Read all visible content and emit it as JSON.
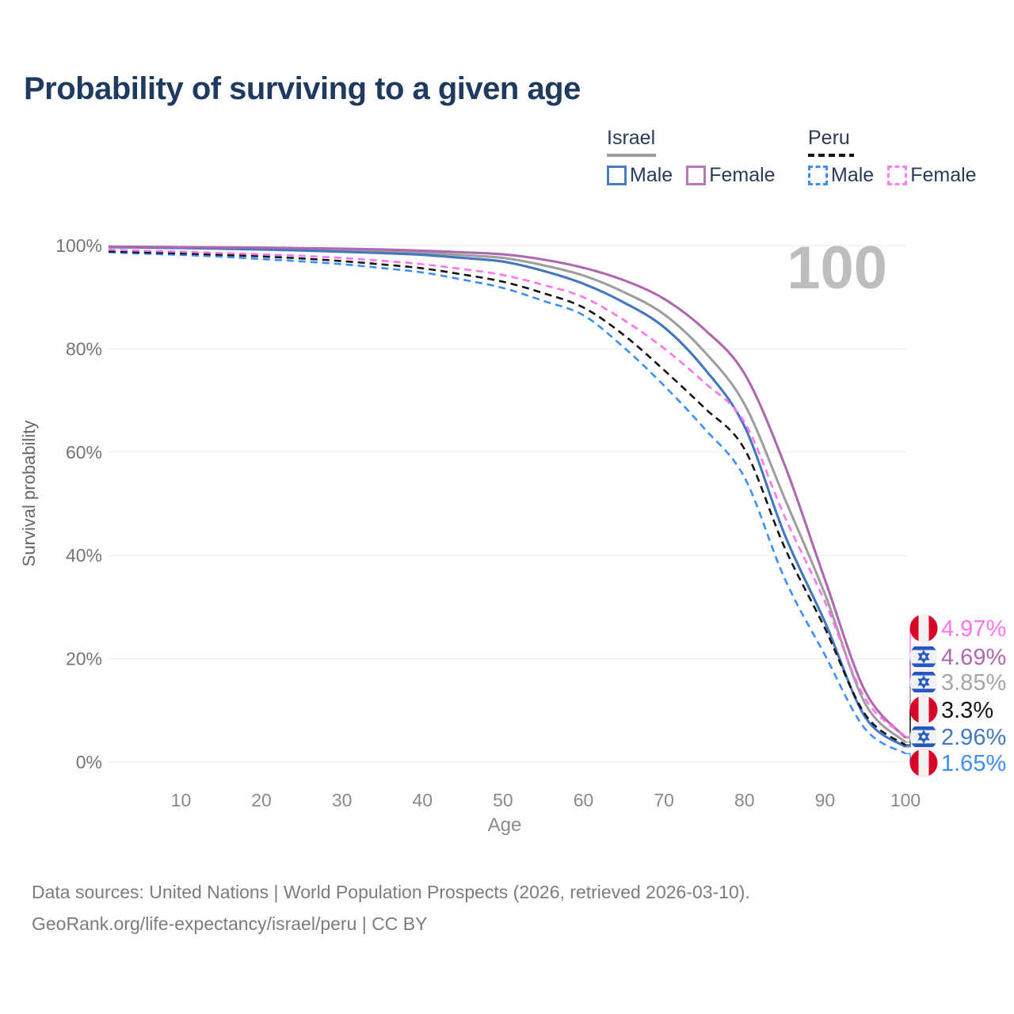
{
  "title": "Probability of surviving to a given age",
  "watermark_age": "100",
  "legend": {
    "groups": [
      {
        "label": "Israel",
        "style": "solid",
        "items": [
          {
            "label": "Male"
          },
          {
            "label": "Female"
          }
        ]
      },
      {
        "label": "Peru",
        "style": "dashed",
        "items": [
          {
            "label": "Male"
          },
          {
            "label": "Female"
          }
        ]
      }
    ]
  },
  "chart_data": {
    "type": "line",
    "title": "Probability of surviving to a given age",
    "xlabel": "Age",
    "ylabel": "Survival probability",
    "xlim": [
      1,
      100
    ],
    "ylim": [
      0,
      100
    ],
    "grid": "horizontal",
    "x_ticks": [
      {
        "value": 10,
        "label": "10"
      },
      {
        "value": 20,
        "label": "20"
      },
      {
        "value": 30,
        "label": "30"
      },
      {
        "value": 40,
        "label": "40"
      },
      {
        "value": 50,
        "label": "50"
      },
      {
        "value": 60,
        "label": "60"
      },
      {
        "value": 70,
        "label": "70"
      },
      {
        "value": 80,
        "label": "80"
      },
      {
        "value": 90,
        "label": "90"
      },
      {
        "value": 100,
        "label": "100"
      }
    ],
    "y_ticks": [
      {
        "value": 0,
        "label": "0%"
      },
      {
        "value": 20,
        "label": "20%"
      },
      {
        "value": 40,
        "label": "40%"
      },
      {
        "value": 60,
        "label": "60%"
      },
      {
        "value": 80,
        "label": "80%"
      },
      {
        "value": 100,
        "label": "100%"
      }
    ],
    "x": [
      1,
      5,
      10,
      15,
      20,
      25,
      30,
      35,
      40,
      45,
      50,
      55,
      60,
      65,
      70,
      75,
      80,
      85,
      90,
      95,
      100
    ],
    "series": [
      {
        "id": "israel-total",
        "name": "Israel",
        "sex": "total",
        "dash": false,
        "color": "#9e9e9e",
        "values": [
          99.7,
          99.66,
          99.6,
          99.52,
          99.42,
          99.28,
          99.1,
          98.88,
          98.6,
          98.15,
          97.6,
          96.2,
          94.2,
          91.0,
          86.7,
          79.5,
          69.3,
          51.0,
          32.5,
          11.3,
          3.85
        ]
      },
      {
        "id": "israel-male",
        "name": "Israel Male",
        "sex": "male",
        "dash": false,
        "color": "#4377be",
        "values": [
          99.7,
          99.62,
          99.52,
          99.4,
          99.25,
          99.05,
          98.8,
          98.55,
          98.2,
          97.6,
          96.9,
          95.1,
          92.6,
          89.0,
          84.2,
          76.2,
          65.0,
          44.0,
          27.1,
          8.7,
          2.96
        ]
      },
      {
        "id": "israel-female",
        "name": "Israel Female",
        "sex": "female",
        "dash": false,
        "color": "#ad68b0",
        "values": [
          99.8,
          99.75,
          99.7,
          99.65,
          99.6,
          99.5,
          99.4,
          99.25,
          99.0,
          98.7,
          98.3,
          97.3,
          95.7,
          93.3,
          89.7,
          83.8,
          75.2,
          57.5,
          35.3,
          13.7,
          4.69
        ]
      },
      {
        "id": "peru-male",
        "name": "Peru Male",
        "sex": "male",
        "dash": true,
        "color": "#3c8dff",
        "values": [
          98.7,
          98.45,
          98.2,
          97.85,
          97.4,
          96.95,
          96.4,
          95.65,
          94.8,
          93.4,
          91.8,
          89.3,
          86.5,
          80.3,
          72.9,
          64.6,
          55.1,
          35.5,
          20.7,
          6.4,
          1.65
        ]
      },
      {
        "id": "peru-total",
        "name": "Peru",
        "sex": "total",
        "dash": true,
        "color": "#141414",
        "values": [
          98.9,
          98.7,
          98.5,
          98.22,
          97.9,
          97.5,
          97.0,
          96.35,
          95.6,
          94.4,
          93.0,
          90.8,
          88.0,
          82.7,
          75.9,
          68.6,
          60.6,
          41.5,
          25.9,
          9.2,
          3.3
        ]
      },
      {
        "id": "peru-female",
        "name": "Peru Female",
        "sex": "female",
        "dash": true,
        "color": "#ff73ef",
        "values": [
          99.2,
          99.0,
          98.8,
          98.55,
          98.3,
          98.0,
          97.6,
          97.05,
          96.4,
          95.45,
          94.3,
          92.4,
          90.0,
          85.6,
          80.1,
          73.5,
          65.8,
          47.5,
          31.0,
          12.3,
          4.97
        ]
      }
    ],
    "end_labels": [
      {
        "series": 5,
        "flag": "peru",
        "text": "4.97%",
        "color": "#ff73ef"
      },
      {
        "series": 2,
        "flag": "israel",
        "text": "4.69%",
        "color": "#ad68b0"
      },
      {
        "series": 0,
        "flag": "israel",
        "text": "3.85%",
        "color": "#a6a6a6"
      },
      {
        "series": 4,
        "flag": "peru",
        "text": "3.3%",
        "color": "#141414"
      },
      {
        "series": 1,
        "flag": "israel",
        "text": "2.96%",
        "color": "#4377be"
      },
      {
        "series": 3,
        "flag": "peru",
        "text": "1.65%",
        "color": "#3c8dff"
      }
    ],
    "flag_colors": {
      "peru_red": "#d80027",
      "israel_blue": "#2457c5",
      "flag_white": "#f2f2f2"
    }
  },
  "footer": {
    "line1": "Data sources: United Nations | World Population Prospects (2026, retrieved 2026-03-10).",
    "line2": "GeoRank.org/life-expectancy/israel/peru | CC BY"
  }
}
